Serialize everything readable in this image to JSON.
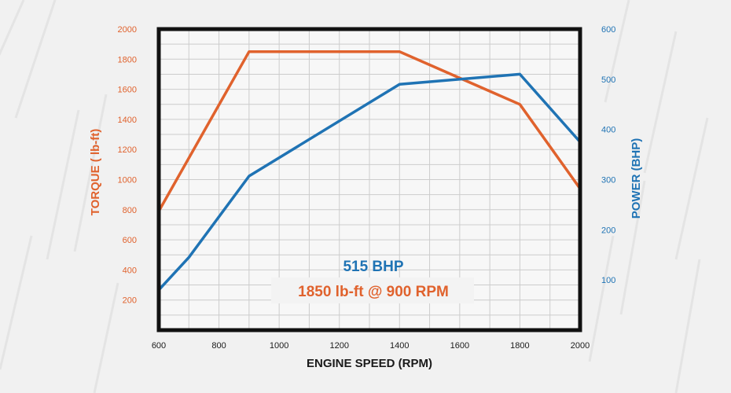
{
  "colors": {
    "torque": "#e0622d",
    "power": "#1f73b4",
    "axis_text": "#1a1a1a",
    "grid": "#cccccc",
    "frame": "#111111",
    "background": "#f1f1f1"
  },
  "chart_data": {
    "type": "line",
    "title": "",
    "xlabel": "ENGINE SPEED (RPM)",
    "ylabel_left": "TORQUE ( lb-ft)",
    "ylabel_right": "POWER (BHP)",
    "xlim": [
      600,
      2000
    ],
    "ylim_left": [
      0,
      2000
    ],
    "ylim_right": [
      0,
      600
    ],
    "x_ticks": [
      600,
      800,
      1000,
      1200,
      1400,
      1600,
      1800,
      2000
    ],
    "y_ticks_left": [
      200,
      400,
      600,
      800,
      1000,
      1200,
      1400,
      1600,
      1800,
      2000
    ],
    "y_ticks_right": [
      100,
      200,
      300,
      400,
      500,
      600
    ],
    "grid": true,
    "series": [
      {
        "name": "TORQUE ( lb-ft)",
        "axis": "left",
        "color": "#e0622d",
        "points": [
          [
            600,
            790
          ],
          [
            900,
            1850
          ],
          [
            1400,
            1850
          ],
          [
            1800,
            1500
          ],
          [
            2000,
            940
          ]
        ]
      },
      {
        "name": "POWER (BHP)",
        "axis": "right",
        "color": "#1f73b4",
        "points": [
          [
            600,
            80
          ],
          [
            700,
            145
          ],
          [
            900,
            307
          ],
          [
            1400,
            490
          ],
          [
            1800,
            510
          ],
          [
            2000,
            375
          ]
        ]
      }
    ],
    "annotations": [
      {
        "text": "515 BHP",
        "color": "#1f73b4"
      },
      {
        "text": "1850 lb-ft @ 900 RPM",
        "color": "#e0622d"
      }
    ]
  }
}
